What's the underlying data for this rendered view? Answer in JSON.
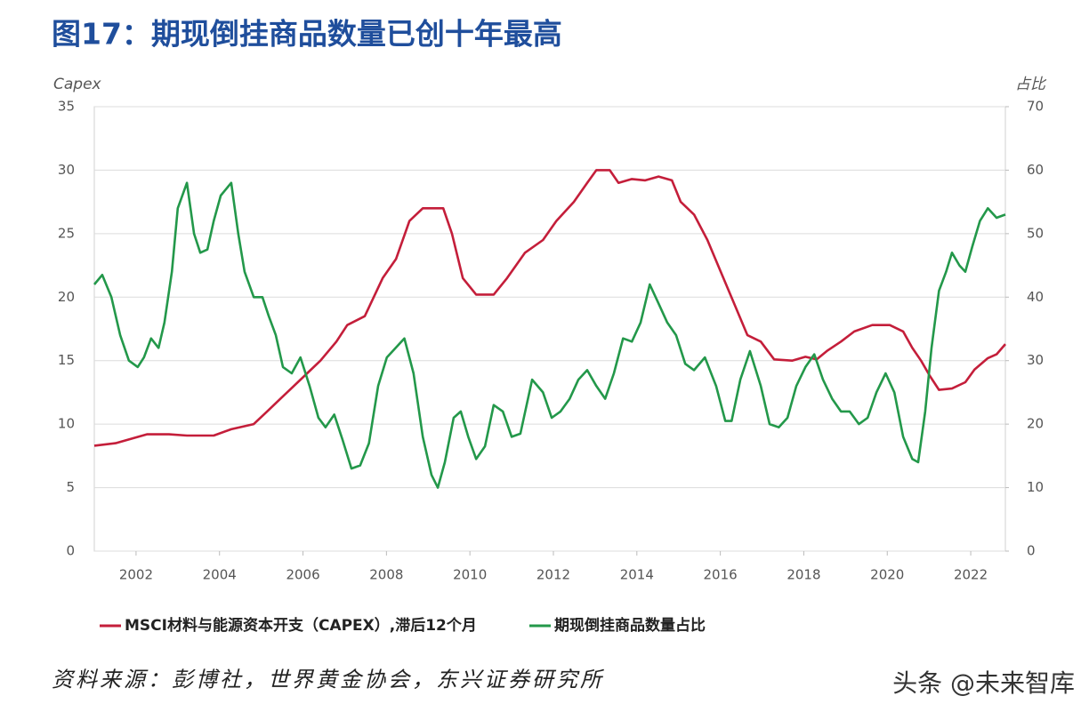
{
  "chart_data": {
    "type": "line",
    "title": "图17：期现倒挂商品数量已创十年最高",
    "ylabel": "Capex",
    "y2label": "占比",
    "source": "资料来源：彭博社，世界黄金协会，东兴证券研究所",
    "watermark": "头条 @未来智库",
    "xlim": [
      2001,
      2022.83
    ],
    "xticks": [
      2002,
      2004,
      2006,
      2008,
      2010,
      2012,
      2014,
      2016,
      2018,
      2020,
      2022
    ],
    "ylim": [
      0,
      35
    ],
    "yticks": [
      0,
      5,
      10,
      15,
      20,
      25,
      30,
      35
    ],
    "y2lim": [
      0,
      70
    ],
    "y2ticks": [
      0,
      10,
      20,
      30,
      40,
      50,
      60,
      70
    ],
    "grid": true,
    "series": [
      {
        "name": "MSCI材料与能源资本开支（CAPEX）,滞后12个月",
        "color": "#c41e3a",
        "axis": "y",
        "x": [
          2001.0,
          2001.51,
          2001.94,
          2002.26,
          2002.79,
          2003.22,
          2003.86,
          2004.28,
          2004.82,
          2005.14,
          2005.46,
          2005.78,
          2006.1,
          2006.42,
          2006.8,
          2007.06,
          2007.48,
          2007.91,
          2008.23,
          2008.55,
          2008.87,
          2009.36,
          2009.57,
          2009.83,
          2010.15,
          2010.57,
          2010.89,
          2011.32,
          2011.75,
          2012.07,
          2012.49,
          2012.81,
          2013.03,
          2013.35,
          2013.56,
          2013.88,
          2014.2,
          2014.52,
          2014.84,
          2015.05,
          2015.37,
          2015.69,
          2016.01,
          2016.33,
          2016.65,
          2016.97,
          2017.29,
          2017.72,
          2018.04,
          2018.31,
          2018.57,
          2018.89,
          2019.21,
          2019.64,
          2020.06,
          2020.38,
          2020.6,
          2020.81,
          2021.02,
          2021.24,
          2021.55,
          2021.87,
          2022.09,
          2022.41,
          2022.62,
          2022.83
        ],
        "values": [
          8.3,
          8.5,
          8.9,
          9.2,
          9.2,
          9.1,
          9.1,
          9.6,
          10.0,
          11,
          12,
          13,
          14,
          15,
          16.5,
          17.8,
          18.5,
          21.5,
          23,
          26,
          27,
          27,
          25,
          21.5,
          20.2,
          20.2,
          21.5,
          23.5,
          24.5,
          26,
          27.5,
          29,
          30,
          30,
          29,
          29.3,
          29.2,
          29.5,
          29.2,
          27.5,
          26.5,
          24.5,
          22,
          19.5,
          17,
          16.5,
          15.1,
          15,
          15.3,
          15.1,
          15.8,
          16.5,
          17.3,
          17.8,
          17.8,
          17.3,
          16,
          15,
          13.8,
          12.7,
          12.8,
          13.3,
          14.3,
          15.2,
          15.5,
          16.3
        ]
      },
      {
        "name": "期现倒挂商品数量占比",
        "color": "#23984a",
        "axis": "y2",
        "x": [
          2001.0,
          2001.19,
          2001.41,
          2001.62,
          2001.83,
          2002.04,
          2002.19,
          2002.36,
          2002.54,
          2002.68,
          2002.86,
          2003.0,
          2003.22,
          2003.39,
          2003.54,
          2003.71,
          2003.86,
          2004.03,
          2004.28,
          2004.45,
          2004.6,
          2004.82,
          2005.03,
          2005.18,
          2005.35,
          2005.52,
          2005.73,
          2005.94,
          2006.16,
          2006.37,
          2006.54,
          2006.75,
          2006.95,
          2007.16,
          2007.37,
          2007.58,
          2007.8,
          2008.01,
          2008.22,
          2008.43,
          2008.65,
          2008.87,
          2009.08,
          2009.23,
          2009.4,
          2009.61,
          2009.78,
          2009.96,
          2010.15,
          2010.36,
          2010.57,
          2010.79,
          2011.0,
          2011.21,
          2011.49,
          2011.75,
          2011.96,
          2012.17,
          2012.39,
          2012.6,
          2012.81,
          2013.03,
          2013.24,
          2013.45,
          2013.67,
          2013.88,
          2014.09,
          2014.31,
          2014.52,
          2014.73,
          2014.94,
          2015.16,
          2015.37,
          2015.63,
          2015.9,
          2016.12,
          2016.27,
          2016.48,
          2016.71,
          2016.97,
          2017.18,
          2017.4,
          2017.61,
          2017.82,
          2018.04,
          2018.25,
          2018.46,
          2018.68,
          2018.89,
          2019.1,
          2019.32,
          2019.53,
          2019.74,
          2019.96,
          2020.17,
          2020.38,
          2020.6,
          2020.74,
          2020.91,
          2021.06,
          2021.24,
          2021.41,
          2021.55,
          2021.73,
          2021.87,
          2022.04,
          2022.22,
          2022.41,
          2022.62,
          2022.83
        ],
        "values": [
          42,
          43.5,
          40,
          34,
          30,
          29,
          30.5,
          33.5,
          32,
          36,
          44,
          54,
          58,
          50,
          47,
          47.5,
          52,
          56,
          58,
          50,
          44,
          40,
          40,
          37,
          34,
          29,
          28,
          30.5,
          26,
          21,
          19.5,
          21.5,
          17.5,
          13,
          13.5,
          17,
          26,
          30.5,
          32,
          33.5,
          28,
          18,
          12,
          10,
          14,
          21,
          22,
          18,
          14.5,
          16.5,
          23,
          22,
          18,
          18.5,
          27,
          25,
          21,
          22,
          24,
          27,
          28.5,
          26,
          24,
          28,
          33.5,
          33,
          36,
          42,
          39,
          36,
          34,
          29.5,
          28.5,
          30.5,
          26,
          20.5,
          20.5,
          27,
          31.5,
          26,
          20,
          19.5,
          21,
          26,
          29,
          31,
          27,
          24,
          22,
          22,
          20,
          21,
          25,
          28,
          25,
          18,
          14.5,
          14,
          22,
          32,
          41,
          44,
          47,
          45,
          44,
          48,
          52,
          54,
          52.5,
          53
        ]
      }
    ]
  }
}
